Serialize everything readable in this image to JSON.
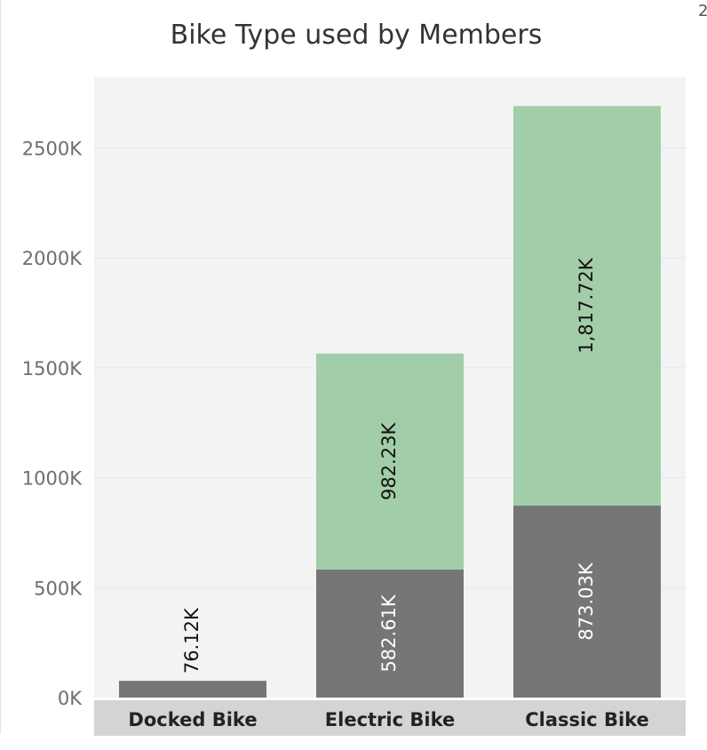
{
  "corner_text": "2",
  "chart_data": {
    "type": "bar",
    "stacked": true,
    "title": "Bike Type used by Members",
    "xlabel": "",
    "ylabel": "",
    "categories": [
      "Docked Bike",
      "Electric Bike",
      "Classic Bike"
    ],
    "series": [
      {
        "color": "#767676",
        "values": [
          76.12,
          582.61,
          873.03
        ],
        "labels": [
          "76.12K",
          "582.61K",
          "873.03K"
        ]
      },
      {
        "color": "#a2cda9",
        "values": [
          null,
          982.23,
          1817.72
        ],
        "labels": [
          "",
          "982.23K",
          "1,817.72K"
        ]
      }
    ],
    "ylim": [
      0,
      2740
    ],
    "yticks": [
      0,
      500,
      1000,
      1500,
      2000,
      2500
    ],
    "ytick_labels": [
      "0K",
      "500K",
      "1000K",
      "1500K",
      "2000K",
      "2500K"
    ],
    "grid": true,
    "legend": "none",
    "colors": {
      "plot_bg": "#f3f3f3",
      "axis_band": "#d4d4d4",
      "grid": "#e8e8e8"
    }
  }
}
